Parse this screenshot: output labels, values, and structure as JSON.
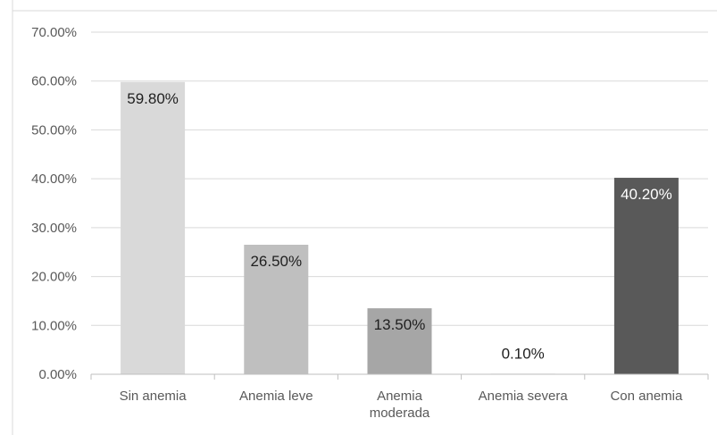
{
  "chart_data": {
    "type": "bar",
    "title": "",
    "xlabel": "",
    "ylabel": "",
    "categories": [
      "Sin anemia",
      "Anemia leve",
      "Anemia moderada",
      "Anemia severa",
      "Con anemia"
    ],
    "category_lines": [
      [
        "Sin anemia"
      ],
      [
        "Anemia leve"
      ],
      [
        "Anemia",
        "moderada"
      ],
      [
        "Anemia severa"
      ],
      [
        "Con anemia"
      ]
    ],
    "values": [
      59.8,
      26.5,
      13.5,
      0.1,
      40.2
    ],
    "value_labels": [
      "59.80%",
      "26.50%",
      "13.50%",
      "0.10%",
      "40.20%"
    ],
    "ylim": [
      0,
      70
    ],
    "yticks": [
      0,
      10,
      20,
      30,
      40,
      50,
      60,
      70
    ],
    "ytick_labels": [
      "0.00%",
      "10.00%",
      "20.00%",
      "30.00%",
      "40.00%",
      "50.00%",
      "60.00%",
      "70.00%"
    ],
    "grid": true,
    "legend": "none",
    "bar_colors": [
      "#d9d9d9",
      "#bfbfbf",
      "#a6a6a6",
      "#7f7f7f",
      "#595959"
    ],
    "label_colors": [
      "#1f1f1f",
      "#1f1f1f",
      "#1f1f1f",
      "#1f1f1f",
      "#ffffff"
    ]
  }
}
